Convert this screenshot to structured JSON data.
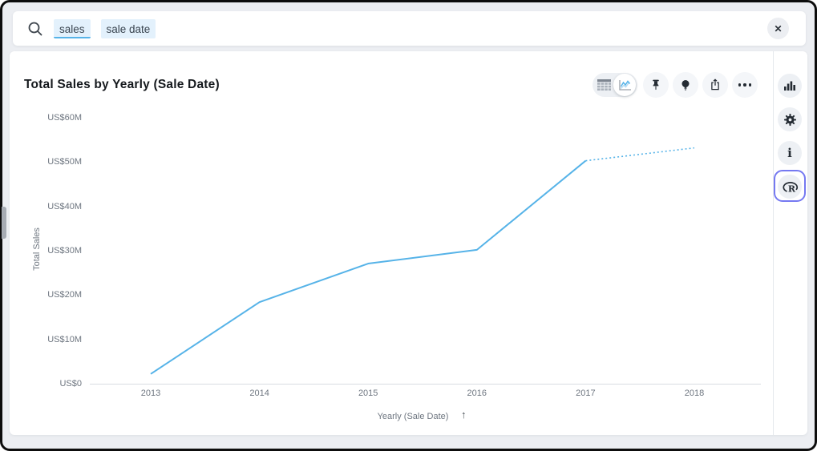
{
  "search": {
    "tokens": [
      {
        "label": "sales",
        "active": true
      },
      {
        "label": "sale date",
        "active": false
      }
    ]
  },
  "icons": {
    "close": "✕",
    "sort_arrow": "↑",
    "info": "i",
    "r_label": "R"
  },
  "toolbar": {
    "items": [
      "table-view-toggle",
      "chart-view-toggle",
      "pin",
      "insights-bulb",
      "share-export",
      "more-options"
    ]
  },
  "sidebar": {
    "items": [
      "visualization-type",
      "settings-gear",
      "info",
      "r-script"
    ],
    "highlighted_item": "r-script",
    "highlight_color": "#7579f1"
  },
  "chart_data": {
    "type": "line",
    "title": "Total Sales by Yearly (Sale Date)",
    "x": [
      "2013",
      "2014",
      "2015",
      "2016",
      "2017",
      "2018"
    ],
    "series": [
      {
        "name": "Total Sales",
        "values_million_usd": [
          2.2,
          18.4,
          27.1,
          30.2,
          50.3,
          53.2
        ]
      }
    ],
    "solid_segment_x": [
      "2013",
      "2017"
    ],
    "projected_segment": {
      "from": "2017",
      "to": "2018",
      "style": "dotted"
    },
    "xlabel": "Yearly (Sale Date)",
    "ylabel": "Total Sales",
    "y_ticks": [
      "US$0",
      "US$10M",
      "US$20M",
      "US$30M",
      "US$40M",
      "US$50M",
      "US$60M"
    ],
    "ylim_million_usd": [
      0,
      60
    ],
    "grid": false,
    "legend": "none",
    "line_color": "#56b3e8",
    "x_sort": "ascending"
  }
}
